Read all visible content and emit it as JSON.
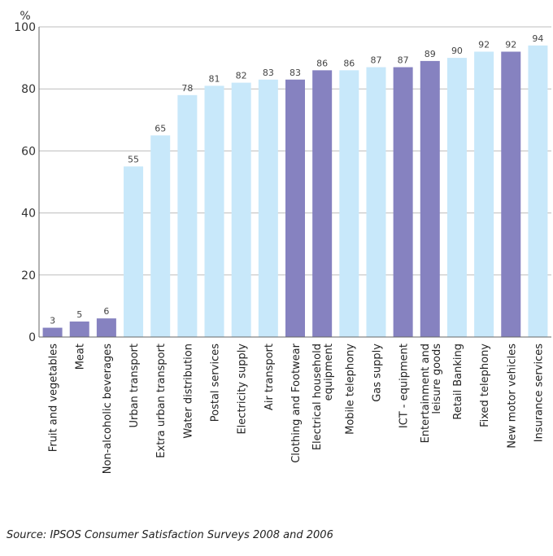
{
  "chart_data": {
    "type": "bar",
    "unit_label": "%",
    "ylim": [
      0,
      100
    ],
    "yticks": [
      0,
      20,
      40,
      60,
      80,
      100
    ],
    "grid": "horizontal",
    "categories": [
      "Fruit and vegetables",
      "Meat",
      "Non-alcoholic beverages",
      "Urban transport",
      "Extra urban transport",
      "Water distribution",
      "Postal services",
      "Electricity supply",
      "Air transport",
      "Clothing and Footwear",
      "Electrical household equipment",
      "Mobile telephony",
      "Gas supply",
      "ICT - equipment",
      "Entertainment and leisure goods",
      "Retail Banking",
      "Fixed telephony",
      "New motor vehicles",
      "Insurance services"
    ],
    "values": [
      3,
      5,
      6,
      55,
      65,
      78,
      81,
      82,
      83,
      83,
      86,
      86,
      87,
      87,
      89,
      90,
      92,
      92,
      94
    ],
    "groups": [
      "goods",
      "goods",
      "goods",
      "services",
      "services",
      "services",
      "services",
      "services",
      "services",
      "goods",
      "goods",
      "services",
      "services",
      "goods",
      "goods",
      "services",
      "services",
      "goods",
      "services"
    ],
    "colors": {
      "goods": "#8682c0",
      "services": "#c8e8fa",
      "grid": "#bdbdbd",
      "axis": "#666666"
    }
  },
  "source": "Source: IPSOS Consumer Satisfaction Surveys 2008 and 2006"
}
